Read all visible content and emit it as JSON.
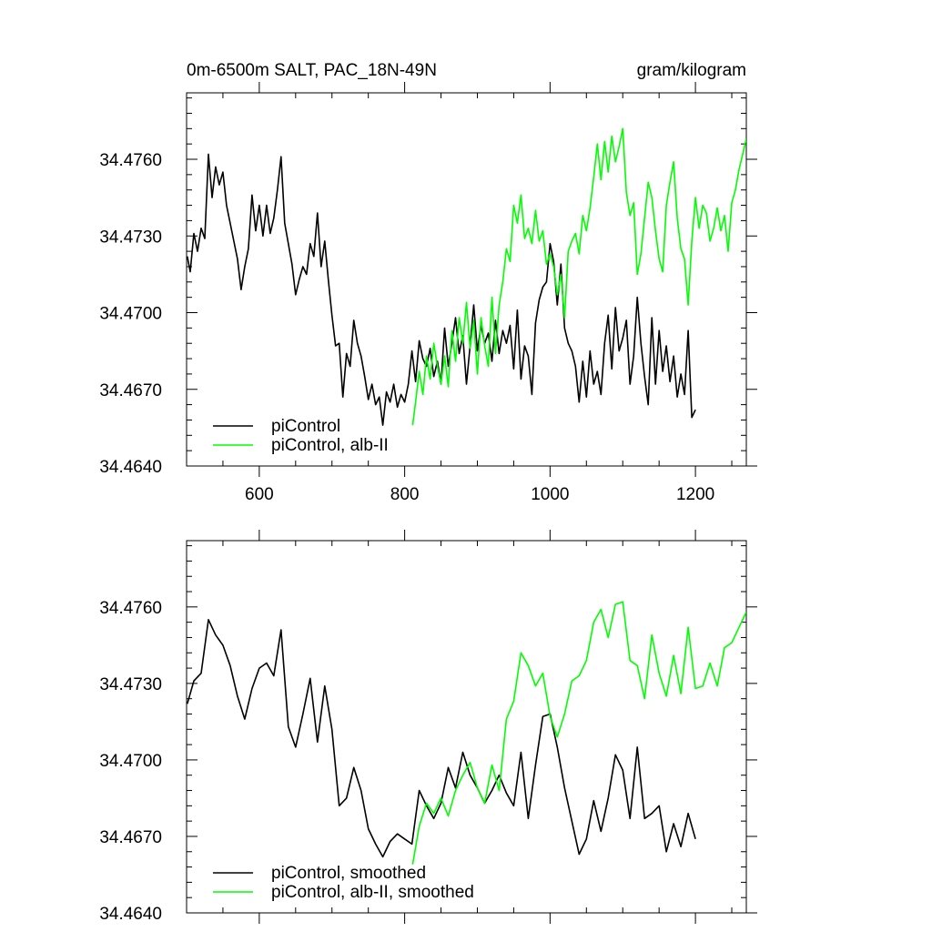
{
  "chart_data": [
    {
      "type": "line",
      "title": "0m-6500m SALT, PAC_18N-49N",
      "units": "gram/kilogram",
      "xlabel": "",
      "ylabel": "",
      "xlim": [
        500,
        1270
      ],
      "ylim": [
        34.464,
        34.4786
      ],
      "x_ticks": [
        600,
        800,
        1000,
        1200
      ],
      "x_tick_labels": [
        "600",
        "800",
        "1000",
        "1200"
      ],
      "y_ticks": [
        34.464,
        34.467,
        34.47,
        34.473,
        34.476
      ],
      "y_tick_labels": [
        "34.4640",
        "34.4670",
        "34.4700",
        "34.4730",
        "34.4760"
      ],
      "grid": false,
      "legend_position": "bottom-left",
      "series": [
        {
          "name": "piControl",
          "color": "#000000",
          "x": [
            501,
            505,
            510,
            515,
            520,
            525,
            530,
            535,
            540,
            545,
            550,
            555,
            560,
            565,
            570,
            575,
            580,
            585,
            590,
            595,
            600,
            605,
            610,
            615,
            620,
            625,
            630,
            635,
            640,
            645,
            650,
            655,
            660,
            665,
            670,
            675,
            680,
            685,
            690,
            695,
            700,
            705,
            710,
            715,
            720,
            725,
            730,
            735,
            740,
            745,
            750,
            755,
            760,
            765,
            770,
            775,
            780,
            785,
            790,
            795,
            800,
            805,
            810,
            815,
            820,
            825,
            830,
            835,
            840,
            845,
            850,
            855,
            860,
            865,
            870,
            875,
            880,
            885,
            890,
            895,
            900,
            905,
            910,
            915,
            920,
            925,
            930,
            935,
            940,
            945,
            950,
            955,
            960,
            965,
            970,
            975,
            980,
            985,
            990,
            995,
            1000,
            1005,
            1010,
            1015,
            1020,
            1025,
            1030,
            1035,
            1040,
            1045,
            1050,
            1055,
            1060,
            1065,
            1070,
            1075,
            1080,
            1085,
            1090,
            1095,
            1100,
            1105,
            1110,
            1115,
            1120,
            1125,
            1130,
            1135,
            1140,
            1145,
            1150,
            1155,
            1160,
            1165,
            1170,
            1175,
            1180,
            1185,
            1190,
            1195,
            1200
          ],
          "y": [
            34.4722,
            34.4716,
            34.4731,
            34.4724,
            34.4733,
            34.4729,
            34.4762,
            34.4745,
            34.4757,
            34.475,
            34.4755,
            34.4742,
            34.4735,
            34.4728,
            34.4721,
            34.4709,
            34.4718,
            34.4725,
            34.4746,
            34.4732,
            34.4742,
            34.473,
            34.4742,
            34.4731,
            34.4737,
            34.4748,
            34.4761,
            34.4735,
            34.4727,
            34.4719,
            34.4707,
            34.4713,
            34.4718,
            34.4715,
            34.4727,
            34.4722,
            34.4739,
            34.4718,
            34.4728,
            34.4713,
            34.4699,
            34.4687,
            34.4688,
            34.4667,
            34.4684,
            34.4679,
            34.4697,
            34.4688,
            34.4683,
            34.4675,
            34.4666,
            34.4672,
            34.4664,
            34.4667,
            34.4656,
            34.4669,
            34.4665,
            34.4672,
            34.4663,
            34.4668,
            34.4665,
            34.4672,
            34.4685,
            34.4673,
            34.4689,
            34.4682,
            34.4679,
            34.4686,
            34.4675,
            34.4681,
            34.4672,
            34.4694,
            34.4679,
            34.4688,
            34.4698,
            34.4684,
            34.4691,
            34.4672,
            34.4687,
            34.4703,
            34.4685,
            34.4695,
            34.4688,
            34.4692,
            34.4681,
            34.4697,
            34.4684,
            34.4693,
            34.4688,
            34.4695,
            34.4678,
            34.4701,
            34.4674,
            34.4687,
            34.4683,
            34.4668,
            34.4696,
            34.4705,
            34.471,
            34.4712,
            34.4727,
            34.472,
            34.4703,
            34.4719,
            34.4694,
            34.4688,
            34.4685,
            34.4679,
            34.4665,
            34.4681,
            34.4667,
            34.4685,
            34.4672,
            34.4677,
            34.4668,
            34.4688,
            34.4699,
            34.4678,
            34.4702,
            34.4685,
            34.469,
            34.4697,
            34.4672,
            34.4683,
            34.4706,
            34.4688,
            34.4675,
            34.4664,
            34.4698,
            34.4672,
            34.4693,
            34.4677,
            34.4687,
            34.4673,
            34.4683,
            34.4667,
            34.4676,
            34.4668,
            34.4693,
            34.4659,
            34.4662
          ]
        },
        {
          "name": "piControl, alb-II",
          "color": "#00ff00",
          "x": [
            811,
            815,
            820,
            825,
            830,
            835,
            840,
            845,
            850,
            855,
            860,
            865,
            870,
            875,
            880,
            885,
            890,
            895,
            900,
            905,
            910,
            915,
            920,
            925,
            930,
            935,
            940,
            945,
            950,
            955,
            960,
            965,
            970,
            975,
            980,
            985,
            990,
            995,
            1000,
            1005,
            1010,
            1015,
            1020,
            1025,
            1030,
            1035,
            1040,
            1045,
            1050,
            1055,
            1060,
            1065,
            1070,
            1075,
            1080,
            1085,
            1090,
            1095,
            1100,
            1105,
            1110,
            1115,
            1120,
            1125,
            1130,
            1135,
            1140,
            1145,
            1150,
            1155,
            1160,
            1165,
            1170,
            1175,
            1180,
            1185,
            1190,
            1195,
            1200,
            1205,
            1210,
            1215,
            1220,
            1225,
            1230,
            1235,
            1240,
            1245,
            1250,
            1255,
            1260,
            1265,
            1270
          ],
          "y": [
            34.4656,
            34.4665,
            34.4677,
            34.4668,
            34.4683,
            34.4674,
            34.4688,
            34.4679,
            34.4672,
            34.4683,
            34.4671,
            34.4693,
            34.4681,
            34.4698,
            34.4688,
            34.4704,
            34.4686,
            34.4697,
            34.4676,
            34.4698,
            34.4687,
            34.4679,
            34.4706,
            34.4684,
            34.4703,
            34.4712,
            34.4725,
            34.472,
            34.4742,
            34.4735,
            34.4746,
            34.4729,
            34.4733,
            34.4727,
            34.474,
            34.4728,
            34.4732,
            34.4719,
            34.4723,
            34.4718,
            34.4707,
            34.4715,
            34.4698,
            34.4724,
            34.4728,
            34.4731,
            34.4723,
            34.4738,
            34.4732,
            34.4741,
            34.4753,
            34.4766,
            34.4752,
            34.4767,
            34.4755,
            34.4769,
            34.4759,
            34.4765,
            34.4772,
            34.4747,
            34.4738,
            34.4743,
            34.4715,
            34.4723,
            34.4737,
            34.4751,
            34.4745,
            34.4732,
            34.4721,
            34.4716,
            34.4742,
            34.4751,
            34.4759,
            34.4737,
            34.4725,
            34.4721,
            34.4703,
            34.4728,
            34.4745,
            34.4733,
            34.4742,
            34.4739,
            34.4728,
            34.4733,
            34.4741,
            34.4732,
            34.4738,
            34.4724,
            34.4743,
            34.4748,
            34.4756,
            34.4762,
            34.4768
          ]
        }
      ]
    },
    {
      "type": "line",
      "title": "",
      "units": "",
      "xlabel": "",
      "ylabel": "",
      "xlim": [
        500,
        1270
      ],
      "ylim": [
        34.464,
        34.4786
      ],
      "x_ticks": [
        600,
        800,
        1000,
        1200
      ],
      "x_tick_labels": [],
      "y_ticks": [
        34.464,
        34.467,
        34.47,
        34.473,
        34.476
      ],
      "y_tick_labels": [
        "34.4640",
        "34.4670",
        "34.4700",
        "34.4730",
        "34.4760"
      ],
      "grid": false,
      "legend_position": "bottom-left",
      "series": [
        {
          "name": "piControl, smoothed",
          "color": "#000000",
          "x": [
            501,
            510,
            520,
            530,
            540,
            550,
            560,
            570,
            580,
            590,
            600,
            610,
            620,
            630,
            640,
            650,
            660,
            670,
            680,
            690,
            700,
            710,
            720,
            730,
            740,
            750,
            760,
            770,
            780,
            790,
            800,
            810,
            820,
            830,
            840,
            850,
            860,
            870,
            880,
            890,
            900,
            910,
            920,
            930,
            940,
            950,
            960,
            970,
            980,
            990,
            1000,
            1010,
            1020,
            1030,
            1040,
            1050,
            1060,
            1070,
            1080,
            1090,
            1100,
            1110,
            1120,
            1130,
            1140,
            1150,
            1160,
            1170,
            1180,
            1190,
            1200
          ],
          "y": [
            34.4722,
            34.4731,
            34.4734,
            34.4755,
            34.4749,
            34.4745,
            34.4737,
            34.4725,
            34.4716,
            34.4728,
            34.4736,
            34.4738,
            34.4733,
            34.4751,
            34.4713,
            34.4705,
            34.4718,
            34.4732,
            34.4707,
            34.4729,
            34.4712,
            34.4682,
            34.4685,
            34.4697,
            34.4688,
            34.4673,
            34.4667,
            34.4662,
            34.4668,
            34.4671,
            34.4669,
            34.4667,
            34.4688,
            34.4682,
            34.4677,
            34.4683,
            34.4697,
            34.4689,
            34.4703,
            34.4694,
            34.4689,
            34.4683,
            34.4688,
            34.4694,
            34.4687,
            34.4682,
            34.4703,
            34.4677,
            34.4698,
            34.4717,
            34.4718,
            34.4705,
            34.4689,
            34.4676,
            34.4663,
            34.4669,
            34.4684,
            34.4672,
            34.4685,
            34.4702,
            34.4696,
            34.4677,
            34.4705,
            34.4677,
            34.4679,
            34.4682,
            34.4664,
            34.4675,
            34.4666,
            34.4679,
            34.4669
          ]
        },
        {
          "name": "piControl, alb-II, smoothed",
          "color": "#00ff00",
          "x": [
            811,
            820,
            830,
            840,
            850,
            860,
            870,
            880,
            890,
            900,
            910,
            920,
            930,
            940,
            950,
            960,
            970,
            980,
            990,
            1000,
            1010,
            1020,
            1030,
            1040,
            1050,
            1060,
            1070,
            1080,
            1090,
            1100,
            1110,
            1120,
            1130,
            1140,
            1150,
            1160,
            1170,
            1180,
            1190,
            1200,
            1210,
            1220,
            1230,
            1240,
            1250,
            1260,
            1270
          ],
          "y": [
            34.4659,
            34.4674,
            34.4683,
            34.4679,
            34.4685,
            34.4678,
            34.4688,
            34.4694,
            34.4699,
            34.4689,
            34.4683,
            34.4698,
            34.4688,
            34.4716,
            34.4723,
            34.4742,
            34.4737,
            34.4729,
            34.4734,
            34.4717,
            34.4709,
            34.4718,
            34.4731,
            34.4733,
            34.4739,
            34.4754,
            34.4759,
            34.4748,
            34.4761,
            34.4762,
            34.4739,
            34.4737,
            34.4724,
            34.4749,
            34.4734,
            34.4725,
            34.4741,
            34.4726,
            34.4752,
            34.4728,
            34.4729,
            34.4738,
            34.4729,
            34.4744,
            34.4746,
            34.4752,
            34.4758
          ]
        }
      ]
    }
  ]
}
